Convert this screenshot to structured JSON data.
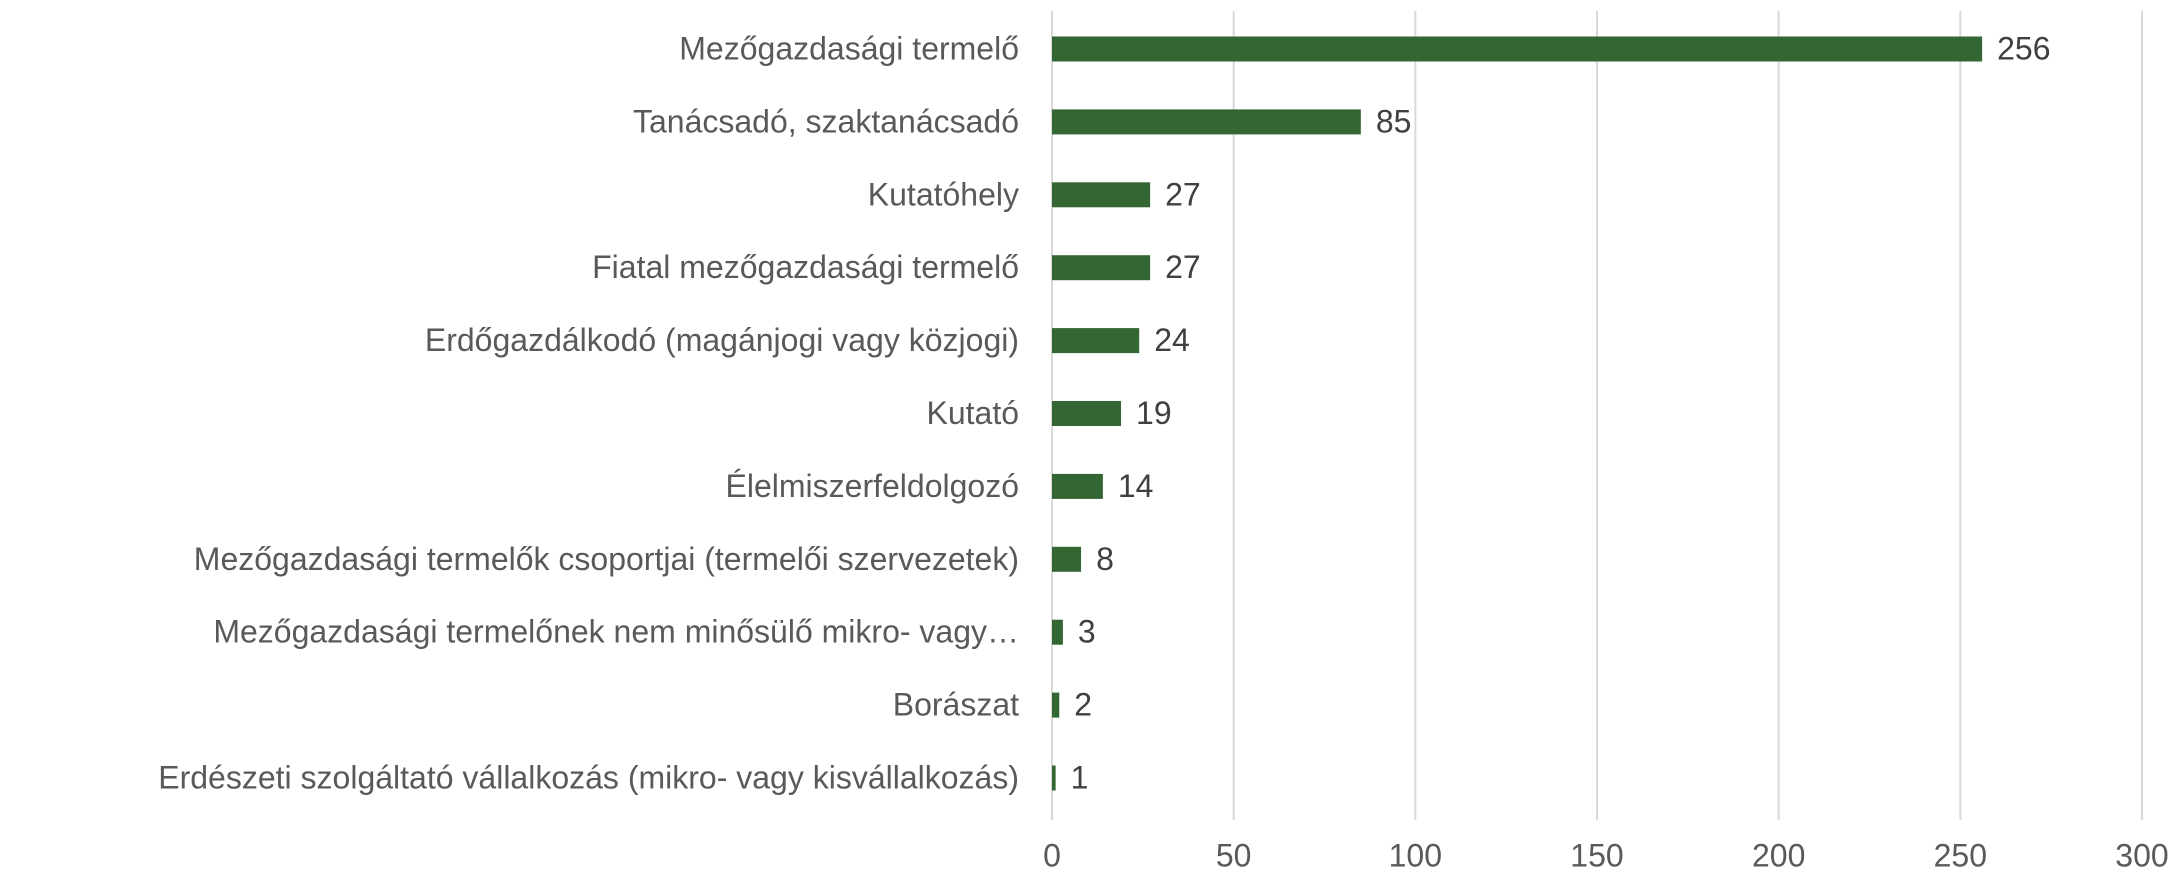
{
  "chart_data": {
    "type": "barh",
    "categories": [
      "Mezőgazdasági termelő",
      "Tanácsadó, szaktanácsadó",
      "Kutatóhely",
      "Fiatal mezőgazdasági termelő",
      "Erdőgazdálkodó (magánjogi vagy közjogi)",
      "Kutató",
      "Élelmiszerfeldolgozó",
      "Mezőgazdasági termelők csoportjai (termelői szervezetek)",
      "Mezőgazdasági termelőnek nem minősülő mikro- vagy…",
      "Borászat",
      "Erdészeti szolgáltató vállalkozás (mikro- vagy kisvállalkozás)"
    ],
    "values": [
      256,
      85,
      27,
      27,
      24,
      19,
      14,
      8,
      3,
      2,
      1
    ],
    "color": "#336633",
    "xlim": [
      0,
      300
    ],
    "xticks": [
      0,
      50,
      100,
      150,
      200,
      250,
      300
    ],
    "grid": true
  }
}
